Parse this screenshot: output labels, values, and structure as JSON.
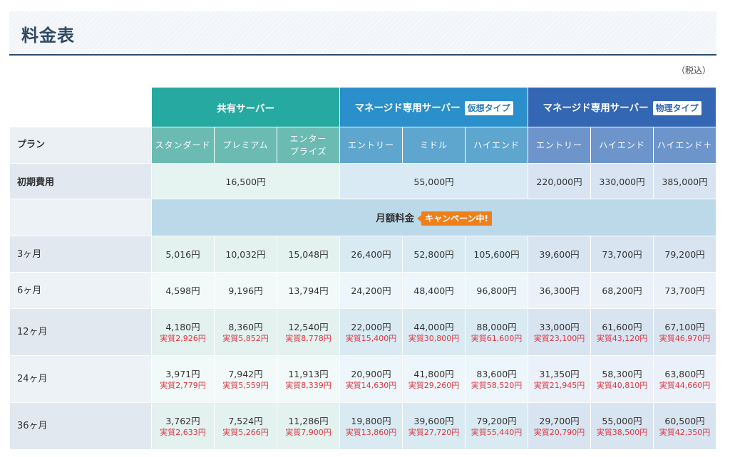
{
  "header": {
    "title": "料金表"
  },
  "tax_note": "（税込）",
  "groups": {
    "shared": {
      "label": "共有サーバー"
    },
    "vps": {
      "label": "マネージド専用サーバー",
      "badge": "仮想タイプ"
    },
    "phys": {
      "label": "マネージド専用サーバー",
      "badge": "物理タイプ"
    }
  },
  "colors": {
    "shared": "#26a9a0",
    "vps": "#2a8fcb",
    "phys": "#3367b3",
    "campaign": "#f07f1a",
    "effective_price": "#e0343f"
  },
  "plan_row": {
    "label": "プラン",
    "plans": [
      "スタンダード",
      "プレミアム",
      "エンター\nプライズ",
      "エントリー",
      "ミドル",
      "ハイエンド",
      "エントリー",
      "ハイエンド",
      "ハイエンド＋"
    ]
  },
  "initial_row": {
    "label": "初期費用",
    "shared": "16,500円",
    "vps": "55,000円",
    "phys": [
      "220,000円",
      "330,000円",
      "385,000円"
    ]
  },
  "monthly_header": {
    "label": "月額料金",
    "badge": "キャンペーン中!"
  },
  "price_rows": [
    {
      "term": "3ヶ月",
      "prices": [
        "5,016円",
        "10,032円",
        "15,048円",
        "26,400円",
        "52,800円",
        "105,600円",
        "39,600円",
        "73,700円",
        "79,200円"
      ],
      "effective": []
    },
    {
      "term": "6ヶ月",
      "prices": [
        "4,598円",
        "9,196円",
        "13,794円",
        "24,200円",
        "48,400円",
        "96,800円",
        "36,300円",
        "68,200円",
        "73,700円"
      ],
      "effective": []
    },
    {
      "term": "12ヶ月",
      "prices": [
        "4,180円",
        "8,360円",
        "12,540円",
        "22,000円",
        "44,000円",
        "88,000円",
        "33,000円",
        "61,600円",
        "67,100円"
      ],
      "effective": [
        "実質2,926円",
        "実質5,852円",
        "実質8,778円",
        "実質15,400円",
        "実質30,800円",
        "実質61,600円",
        "実質23,100円",
        "実質43,120円",
        "実質46,970円"
      ]
    },
    {
      "term": "24ヶ月",
      "prices": [
        "3,971円",
        "7,942円",
        "11,913円",
        "20,900円",
        "41,800円",
        "83,600円",
        "31,350円",
        "58,300円",
        "63,800円"
      ],
      "effective": [
        "実質2,779円",
        "実質5,559円",
        "実質8,339円",
        "実質14,630円",
        "実質29,260円",
        "実質58,520円",
        "実質21,945円",
        "実質40,810円",
        "実質44,660円"
      ]
    },
    {
      "term": "36ヶ月",
      "prices": [
        "3,762円",
        "7,524円",
        "11,286円",
        "19,800円",
        "39,600円",
        "79,200円",
        "29,700円",
        "55,000円",
        "60,500円"
      ],
      "effective": [
        "実質2,633円",
        "実質5,266円",
        "実質7,900円",
        "実質13,860円",
        "実質27,720円",
        "実質55,440円",
        "実質20,790円",
        "実質38,500円",
        "実質42,350円"
      ]
    }
  ]
}
